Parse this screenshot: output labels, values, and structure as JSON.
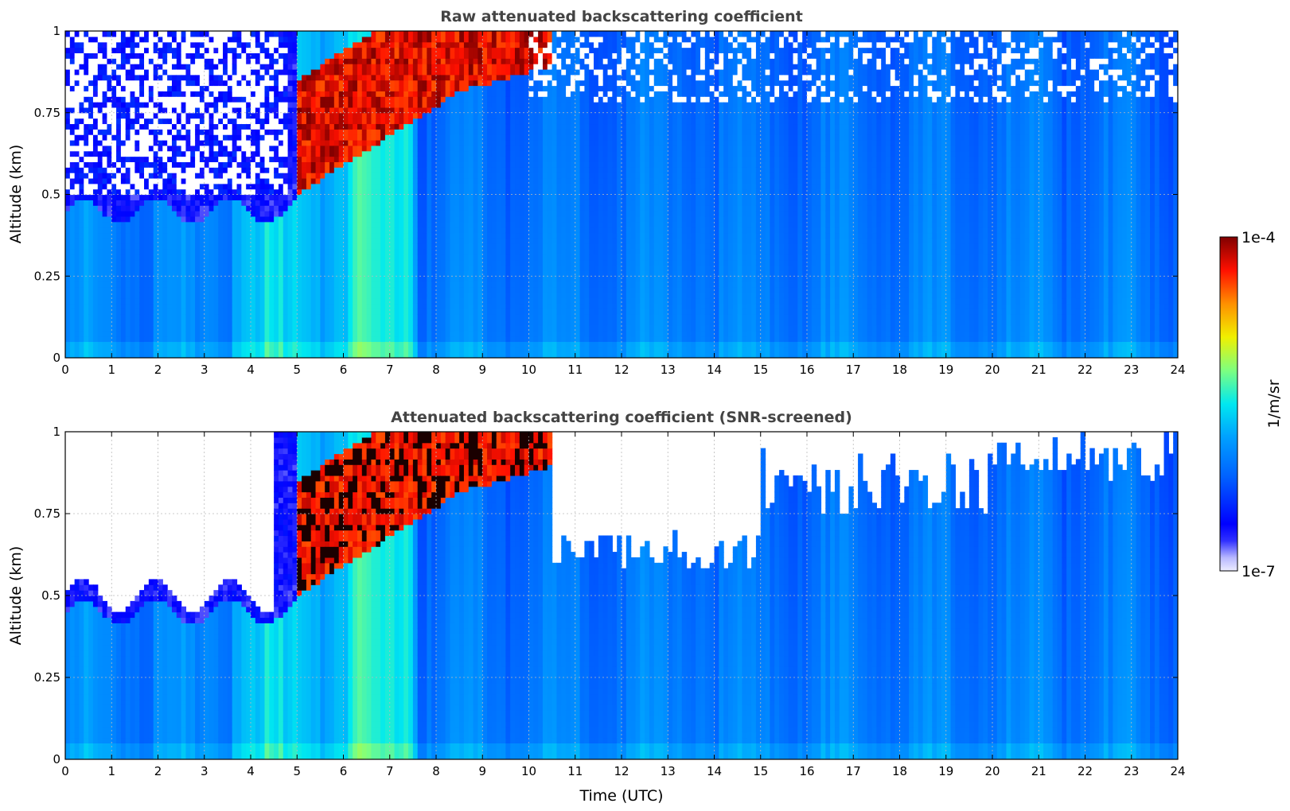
{
  "chart_data": [
    {
      "type": "heatmap",
      "title": "Raw attenuated backscattering coefficient",
      "xlabel": "",
      "ylabel": "Altitude (km)",
      "x_ticks": [
        "0",
        "1",
        "2",
        "3",
        "4",
        "5",
        "6",
        "7",
        "8",
        "9",
        "10",
        "11",
        "12",
        "13",
        "14",
        "15",
        "16",
        "17",
        "18",
        "19",
        "20",
        "21",
        "22",
        "23",
        "24"
      ],
      "y_ticks": [
        "0",
        "0.25",
        "0.5",
        "0.75",
        "1"
      ],
      "xlim": [
        0,
        24
      ],
      "ylim": [
        0,
        1
      ],
      "grid": true,
      "screened": false
    },
    {
      "type": "heatmap",
      "title": "Attenuated backscattering coefficient (SNR-screened)",
      "xlabel": "Time (UTC)",
      "ylabel": "Altitude (km)",
      "x_ticks": [
        "0",
        "1",
        "2",
        "3",
        "4",
        "5",
        "6",
        "7",
        "8",
        "9",
        "10",
        "11",
        "12",
        "13",
        "14",
        "15",
        "16",
        "17",
        "18",
        "19",
        "20",
        "21",
        "22",
        "23",
        "24"
      ],
      "y_ticks": [
        "0",
        "0.25",
        "0.5",
        "0.75",
        "1"
      ],
      "xlim": [
        0,
        24
      ],
      "ylim": [
        0,
        1
      ],
      "grid": true,
      "screened": true
    }
  ],
  "colorbar": {
    "label": "1/m/sr",
    "max_label": "1e-4",
    "min_label": "1e-7",
    "scale": "log",
    "colormap": "jet",
    "range": [
      1e-07,
      0.0001
    ]
  }
}
